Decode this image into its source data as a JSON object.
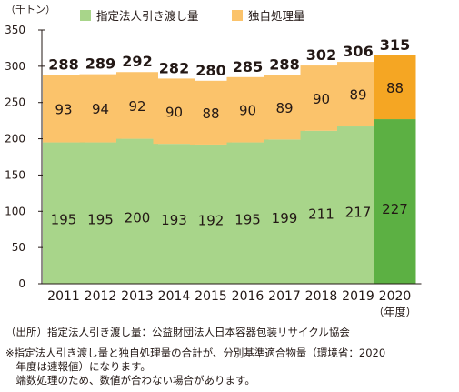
{
  "chart_data": {
    "type": "bar",
    "stacked": true,
    "unit_label": "（千トン）",
    "categories": [
      "2011",
      "2012",
      "2013",
      "2014",
      "2015",
      "2016",
      "2017",
      "2018",
      "2019",
      "2020"
    ],
    "category_suffix_last": "（年度）",
    "series": [
      {
        "name": "指定法人引き渡し量",
        "values": [
          195,
          195,
          200,
          193,
          192,
          195,
          199,
          211,
          217,
          227
        ],
        "color": "#a8d58a",
        "highlight_color": "#5cb043"
      },
      {
        "name": "独自処理量",
        "values": [
          93,
          94,
          92,
          90,
          88,
          90,
          89,
          90,
          89,
          88
        ],
        "color": "#fbc36b",
        "highlight_color": "#f5a623"
      }
    ],
    "totals": [
      288,
      289,
      292,
      282,
      280,
      285,
      288,
      302,
      306,
      315
    ],
    "highlight_index": 9,
    "yticks": [
      0,
      50,
      100,
      150,
      200,
      250,
      300,
      350
    ],
    "ylim": [
      0,
      350
    ],
    "grid": false,
    "legend_position": "top"
  },
  "notes": {
    "source": "（出所）指定法人引き渡し量：公益財団法人日本容器包装リサイクル協会",
    "note_line1": "※指定法人引き渡し量と独自処理量の合計が、分別基準適合物量（環境省：2020",
    "note_line2": "　年度は速報値）になります。",
    "note_line3": "　端数処理のため、数値が合わない場合があります。"
  }
}
